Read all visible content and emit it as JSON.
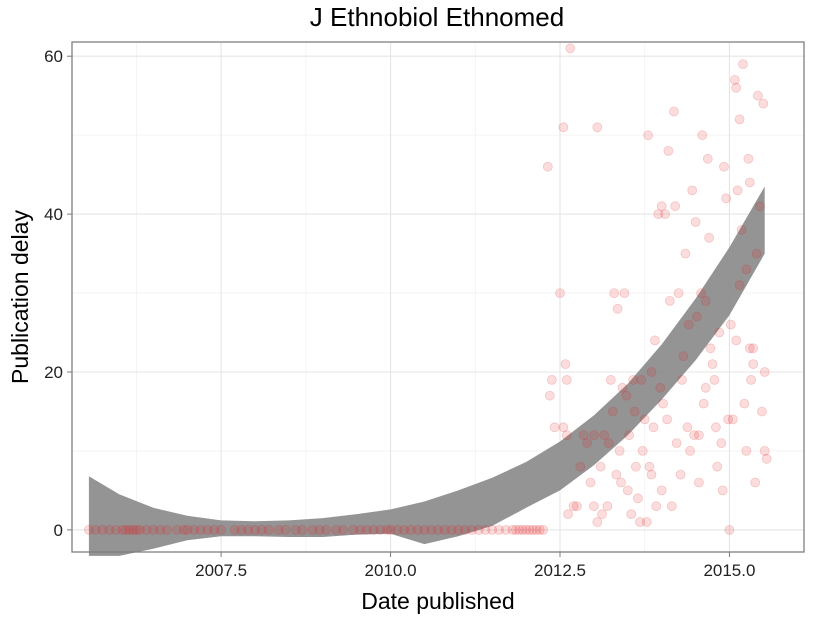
{
  "chart_data": {
    "type": "scatter",
    "title": "J Ethnobiol Ethnomed",
    "xlabel": "Date published",
    "ylabel": "Publication delay",
    "xlim": [
      2005.3,
      2016.1
    ],
    "ylim": [
      -2.8,
      61.8
    ],
    "x_ticks": [
      2007.5,
      2010.0,
      2012.5,
      2015.0
    ],
    "x_tick_labels": [
      "2007.5",
      "2010.0",
      "2012.5",
      "2015.0"
    ],
    "y_ticks": [
      0,
      20,
      40,
      60
    ],
    "y_tick_labels": [
      "0",
      "20",
      "40",
      "60"
    ],
    "grid": true,
    "legend": "none",
    "point_color": "#e31a1c",
    "point_alpha": 0.15,
    "band_color": "#888888",
    "zero_points_x": [
      2005.55,
      2005.65,
      2005.75,
      2005.85,
      2005.95,
      2006.05,
      2006.1,
      2006.15,
      2006.2,
      2006.25,
      2006.3,
      2006.4,
      2006.5,
      2006.6,
      2006.7,
      2006.85,
      2006.95,
      2007.0,
      2007.1,
      2007.2,
      2007.3,
      2007.4,
      2007.5,
      2007.7,
      2007.8,
      2007.9,
      2008.0,
      2008.1,
      2008.2,
      2008.35,
      2008.45,
      2008.6,
      2008.7,
      2008.85,
      2008.95,
      2009.05,
      2009.2,
      2009.3,
      2009.45,
      2009.55,
      2009.65,
      2009.75,
      2009.85,
      2009.95,
      2010.0,
      2010.1,
      2010.2,
      2010.3,
      2010.4,
      2010.5,
      2010.6,
      2010.7,
      2010.8,
      2010.9,
      2011.0,
      2011.1,
      2011.2,
      2011.3,
      2011.4,
      2011.5,
      2011.6,
      2011.7,
      2011.8,
      2011.85,
      2011.9,
      2011.95,
      2012.0,
      2012.05,
      2012.1,
      2012.15,
      2012.2,
      2012.25
    ],
    "scatter_points": [
      [
        2012.32,
        46
      ],
      [
        2012.38,
        19
      ],
      [
        2012.35,
        17
      ],
      [
        2012.42,
        13
      ],
      [
        2012.5,
        30
      ],
      [
        2012.55,
        51
      ],
      [
        2012.58,
        21
      ],
      [
        2012.6,
        19
      ],
      [
        2012.55,
        13
      ],
      [
        2012.6,
        12
      ],
      [
        2012.62,
        2
      ],
      [
        2012.65,
        61
      ],
      [
        2012.7,
        3
      ],
      [
        2012.75,
        3
      ],
      [
        2012.8,
        8
      ],
      [
        2012.85,
        12
      ],
      [
        2012.9,
        11
      ],
      [
        2012.95,
        6
      ],
      [
        2013.0,
        12
      ],
      [
        2013.0,
        3
      ],
      [
        2013.05,
        51
      ],
      [
        2013.05,
        1
      ],
      [
        2013.1,
        8
      ],
      [
        2013.12,
        2
      ],
      [
        2013.15,
        12
      ],
      [
        2013.2,
        3
      ],
      [
        2013.22,
        11
      ],
      [
        2013.25,
        19
      ],
      [
        2013.28,
        15
      ],
      [
        2013.3,
        30
      ],
      [
        2013.33,
        7
      ],
      [
        2013.35,
        28
      ],
      [
        2013.38,
        10
      ],
      [
        2013.4,
        6
      ],
      [
        2013.42,
        18
      ],
      [
        2013.45,
        30
      ],
      [
        2013.48,
        17
      ],
      [
        2013.5,
        5
      ],
      [
        2013.52,
        12
      ],
      [
        2013.55,
        2
      ],
      [
        2013.58,
        19
      ],
      [
        2013.6,
        15
      ],
      [
        2013.62,
        8
      ],
      [
        2013.65,
        4
      ],
      [
        2013.68,
        1
      ],
      [
        2013.7,
        19
      ],
      [
        2013.72,
        10
      ],
      [
        2013.75,
        14
      ],
      [
        2013.78,
        1
      ],
      [
        2013.8,
        50
      ],
      [
        2013.82,
        8
      ],
      [
        2013.85,
        20
      ],
      [
        2013.88,
        13
      ],
      [
        2013.9,
        24
      ],
      [
        2013.92,
        3
      ],
      [
        2013.95,
        40
      ],
      [
        2013.98,
        18
      ],
      [
        2014.0,
        41
      ],
      [
        2014.02,
        16
      ],
      [
        2014.05,
        40
      ],
      [
        2014.08,
        14
      ],
      [
        2014.1,
        48
      ],
      [
        2014.12,
        29
      ],
      [
        2014.15,
        3
      ],
      [
        2014.18,
        53
      ],
      [
        2014.2,
        41
      ],
      [
        2014.22,
        11
      ],
      [
        2014.25,
        30
      ],
      [
        2014.28,
        7
      ],
      [
        2014.3,
        19
      ],
      [
        2014.32,
        22
      ],
      [
        2014.35,
        35
      ],
      [
        2014.38,
        13
      ],
      [
        2014.4,
        26
      ],
      [
        2014.42,
        10
      ],
      [
        2014.45,
        43
      ],
      [
        2014.48,
        12
      ],
      [
        2014.5,
        39
      ],
      [
        2014.52,
        27
      ],
      [
        2014.55,
        6
      ],
      [
        2014.58,
        30
      ],
      [
        2014.6,
        50
      ],
      [
        2014.62,
        16
      ],
      [
        2014.65,
        29
      ],
      [
        2014.68,
        47
      ],
      [
        2014.7,
        37
      ],
      [
        2014.72,
        23
      ],
      [
        2014.75,
        21
      ],
      [
        2014.78,
        19
      ],
      [
        2014.8,
        13
      ],
      [
        2014.82,
        8
      ],
      [
        2014.85,
        25
      ],
      [
        2014.88,
        11
      ],
      [
        2014.9,
        5
      ],
      [
        2014.92,
        46
      ],
      [
        2014.95,
        42
      ],
      [
        2014.98,
        14
      ],
      [
        2015.0,
        0
      ],
      [
        2015.02,
        26
      ],
      [
        2015.05,
        14
      ],
      [
        2015.08,
        57
      ],
      [
        2015.1,
        56
      ],
      [
        2015.1,
        24
      ],
      [
        2015.12,
        43
      ],
      [
        2015.15,
        52
      ],
      [
        2015.18,
        38
      ],
      [
        2015.2,
        59
      ],
      [
        2015.22,
        16
      ],
      [
        2015.25,
        10
      ],
      [
        2015.28,
        47
      ],
      [
        2015.3,
        44
      ],
      [
        2015.3,
        23
      ],
      [
        2015.32,
        19
      ],
      [
        2015.35,
        21
      ],
      [
        2015.38,
        6
      ],
      [
        2015.4,
        35
      ],
      [
        2015.42,
        55
      ],
      [
        2015.45,
        41
      ],
      [
        2015.48,
        15
      ],
      [
        2015.5,
        54
      ],
      [
        2015.52,
        20
      ],
      [
        2015.52,
        10
      ],
      [
        2015.55,
        9
      ],
      [
        2015.25,
        33
      ],
      [
        2015.35,
        23
      ],
      [
        2014.0,
        5
      ],
      [
        2013.85,
        7
      ],
      [
        2014.65,
        18
      ],
      [
        2015.15,
        31
      ],
      [
        2014.55,
        12
      ]
    ],
    "smooth_band": {
      "x": [
        2005.55,
        2006.0,
        2006.5,
        2007.0,
        2007.5,
        2008.0,
        2008.5,
        2009.0,
        2009.5,
        2010.0,
        2010.5,
        2011.0,
        2011.5,
        2012.0,
        2012.5,
        2013.0,
        2013.5,
        2014.0,
        2014.5,
        2015.0,
        2015.52
      ],
      "upper": [
        6.8,
        4.5,
        2.8,
        1.8,
        1.2,
        1.1,
        1.2,
        1.5,
        2.0,
        2.6,
        3.6,
        5.0,
        6.6,
        8.6,
        11.2,
        14.5,
        18.5,
        23.5,
        29.3,
        35.8,
        43.5
      ],
      "lower": [
        -3.3,
        -3.3,
        -2.4,
        -1.3,
        -0.8,
        -0.8,
        -0.9,
        -0.9,
        -0.6,
        -0.5,
        -1.8,
        -0.8,
        0.5,
        2.8,
        5.0,
        8.2,
        12.0,
        16.5,
        21.5,
        27.2,
        35.0
      ]
    }
  }
}
